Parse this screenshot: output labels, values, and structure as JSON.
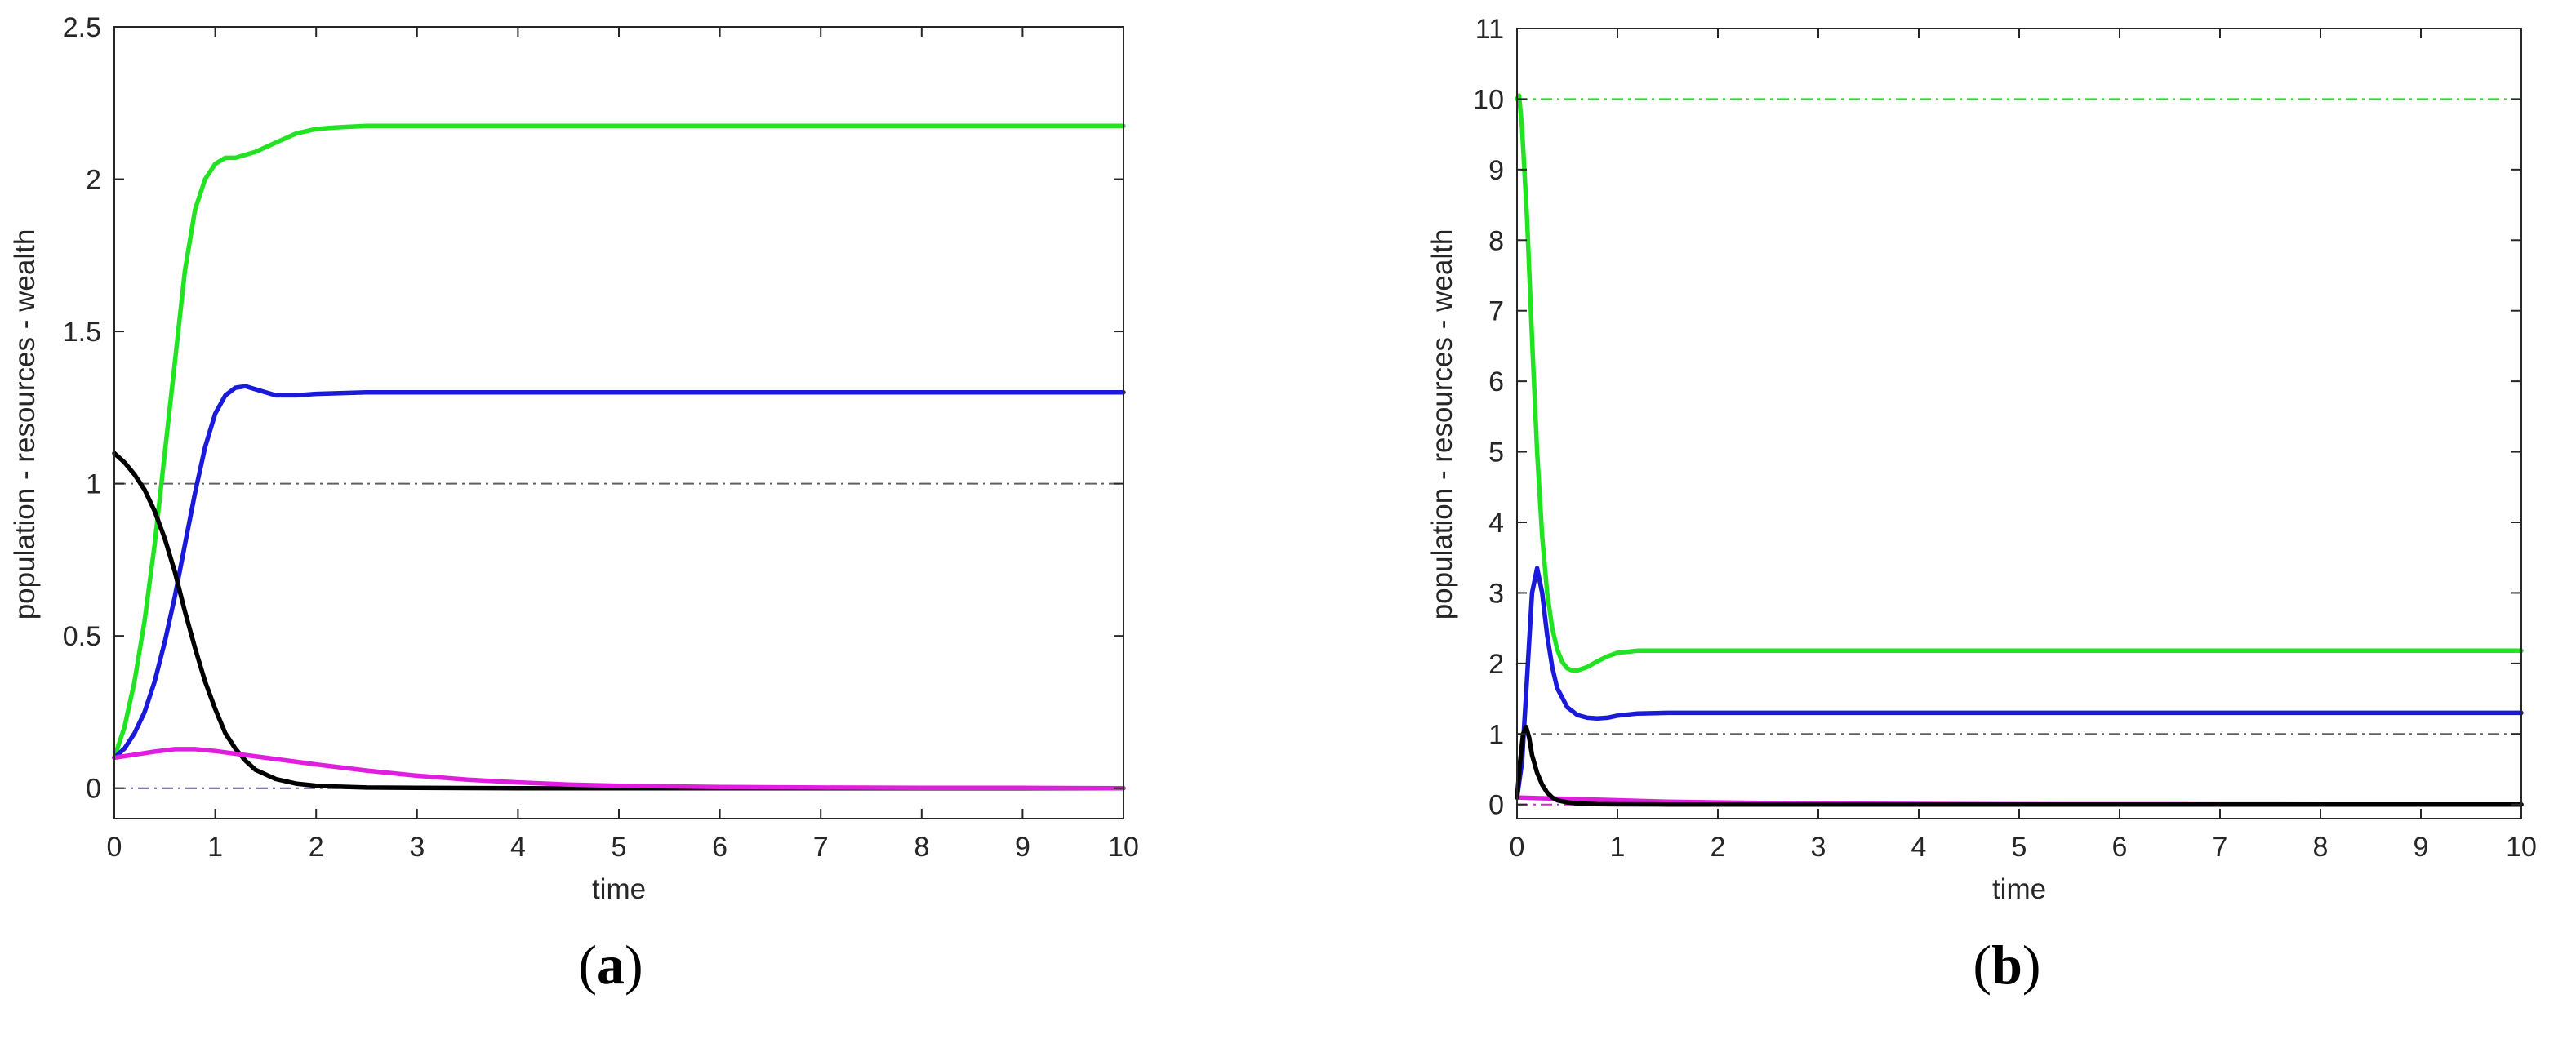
{
  "chart_data": [
    {
      "type": "line",
      "panel": "a",
      "caption_open": "(",
      "caption_letter": "a",
      "caption_close": ")",
      "xlabel": "time",
      "ylabel": "population - resources - wealth",
      "xlim": [
        0,
        10
      ],
      "ylim": [
        -0.1,
        2.5
      ],
      "xticks": [
        "0",
        "1",
        "2",
        "3",
        "4",
        "5",
        "6",
        "7",
        "8",
        "9",
        "10"
      ],
      "yticks": [
        "0",
        "0.5",
        "1",
        "1.5",
        "2",
        "2.5"
      ],
      "ytick_values": [
        0,
        0.5,
        1,
        1.5,
        2,
        2.5
      ],
      "reference_lines": [
        {
          "name": "ref-line-1",
          "y": 1,
          "color": "#606060",
          "style": "dash-dot"
        },
        {
          "name": "ref-line-0",
          "y": 0,
          "color": "#5a5a8a",
          "style": "dash-dot"
        }
      ],
      "series": [
        {
          "name": "green-series",
          "color": "#22e322",
          "x": [
            0,
            0.1,
            0.2,
            0.3,
            0.4,
            0.5,
            0.6,
            0.7,
            0.8,
            0.9,
            1.0,
            1.1,
            1.2,
            1.4,
            1.6,
            1.8,
            2.0,
            2.2,
            2.5,
            3,
            4,
            5,
            6,
            7,
            8,
            9,
            10
          ],
          "y": [
            0.1,
            0.2,
            0.35,
            0.55,
            0.8,
            1.1,
            1.4,
            1.7,
            1.9,
            2.0,
            2.05,
            2.07,
            2.07,
            2.09,
            2.12,
            2.15,
            2.165,
            2.17,
            2.175,
            2.175,
            2.175,
            2.175,
            2.175,
            2.175,
            2.175,
            2.175,
            2.175
          ]
        },
        {
          "name": "blue-series",
          "color": "#1a1adb",
          "x": [
            0,
            0.1,
            0.2,
            0.3,
            0.4,
            0.5,
            0.6,
            0.7,
            0.8,
            0.9,
            1.0,
            1.1,
            1.2,
            1.3,
            1.4,
            1.6,
            1.8,
            2.0,
            2.5,
            3,
            4,
            5,
            6,
            7,
            8,
            9,
            10
          ],
          "y": [
            0.1,
            0.13,
            0.18,
            0.25,
            0.35,
            0.48,
            0.63,
            0.8,
            0.97,
            1.12,
            1.23,
            1.29,
            1.315,
            1.32,
            1.31,
            1.29,
            1.29,
            1.295,
            1.3,
            1.3,
            1.3,
            1.3,
            1.3,
            1.3,
            1.3,
            1.3,
            1.3
          ]
        },
        {
          "name": "black-series",
          "color": "#000000",
          "x": [
            0,
            0.1,
            0.2,
            0.3,
            0.4,
            0.5,
            0.6,
            0.7,
            0.8,
            0.9,
            1.0,
            1.1,
            1.2,
            1.3,
            1.4,
            1.6,
            1.8,
            2.0,
            2.2,
            2.5,
            3,
            4,
            5,
            6,
            7,
            8,
            9,
            10
          ],
          "y": [
            1.1,
            1.07,
            1.03,
            0.98,
            0.91,
            0.82,
            0.71,
            0.58,
            0.46,
            0.35,
            0.26,
            0.18,
            0.13,
            0.09,
            0.06,
            0.03,
            0.015,
            0.008,
            0.005,
            0.002,
            0.001,
            0,
            0,
            0,
            0,
            0,
            0,
            0
          ]
        },
        {
          "name": "magenta-series",
          "color": "#e01ee0",
          "x": [
            0,
            0.2,
            0.4,
            0.6,
            0.8,
            1.0,
            1.2,
            1.5,
            2.0,
            2.5,
            3,
            3.5,
            4,
            4.5,
            5,
            6,
            7,
            8,
            9,
            10
          ],
          "y": [
            0.1,
            0.11,
            0.12,
            0.128,
            0.128,
            0.122,
            0.113,
            0.1,
            0.078,
            0.058,
            0.041,
            0.028,
            0.019,
            0.012,
            0.008,
            0.004,
            0.002,
            0.001,
            0.001,
            0
          ]
        }
      ]
    },
    {
      "type": "line",
      "panel": "b",
      "caption_open": "(",
      "caption_letter": "b",
      "caption_close": ")",
      "xlabel": "time",
      "ylabel": "population - resources - wealth",
      "xlim": [
        0,
        10
      ],
      "ylim": [
        -0.2,
        11
      ],
      "xticks": [
        "0",
        "1",
        "2",
        "3",
        "4",
        "5",
        "6",
        "7",
        "8",
        "9",
        "10"
      ],
      "yticks": [
        "0",
        "1",
        "2",
        "3",
        "4",
        "5",
        "6",
        "7",
        "8",
        "9",
        "10",
        "11"
      ],
      "ytick_values": [
        0,
        1,
        2,
        3,
        4,
        5,
        6,
        7,
        8,
        9,
        10,
        11
      ],
      "reference_lines": [
        {
          "name": "ref-line-10",
          "y": 10,
          "color": "#22e322",
          "style": "dash-dot"
        },
        {
          "name": "ref-line-1",
          "y": 1,
          "color": "#606060",
          "style": "dash-dot"
        },
        {
          "name": "ref-line-0",
          "y": 0,
          "color": "#e01ee0",
          "style": "dash-dot"
        }
      ],
      "series": [
        {
          "name": "green-series",
          "color": "#22e322",
          "x": [
            0,
            0.02,
            0.05,
            0.1,
            0.15,
            0.2,
            0.25,
            0.3,
            0.35,
            0.4,
            0.45,
            0.5,
            0.55,
            0.6,
            0.7,
            0.8,
            0.9,
            1.0,
            1.2,
            1.5,
            2,
            3,
            4,
            5,
            6,
            7,
            8,
            9,
            10
          ],
          "y": [
            10,
            10.05,
            9.6,
            8.3,
            6.6,
            5.0,
            3.8,
            3.0,
            2.5,
            2.2,
            2.02,
            1.93,
            1.9,
            1.9,
            1.95,
            2.03,
            2.1,
            2.15,
            2.18,
            2.18,
            2.18,
            2.18,
            2.18,
            2.18,
            2.18,
            2.18,
            2.18,
            2.18,
            2.18
          ]
        },
        {
          "name": "blue-series",
          "color": "#1a1adb",
          "x": [
            0,
            0.05,
            0.1,
            0.15,
            0.2,
            0.25,
            0.3,
            0.35,
            0.4,
            0.5,
            0.6,
            0.7,
            0.8,
            0.9,
            1.0,
            1.2,
            1.5,
            2,
            3,
            4,
            5,
            6,
            7,
            8,
            9,
            10
          ],
          "y": [
            0.1,
            0.6,
            1.8,
            3.0,
            3.35,
            3.0,
            2.4,
            1.95,
            1.65,
            1.38,
            1.27,
            1.23,
            1.22,
            1.23,
            1.26,
            1.29,
            1.3,
            1.3,
            1.3,
            1.3,
            1.3,
            1.3,
            1.3,
            1.3,
            1.3,
            1.3
          ]
        },
        {
          "name": "magenta-series",
          "color": "#e01ee0",
          "x": [
            0,
            0.2,
            0.5,
            1.0,
            1.5,
            2,
            3,
            4,
            5,
            6,
            7,
            8,
            9,
            10
          ],
          "y": [
            0.1,
            0.09,
            0.08,
            0.06,
            0.04,
            0.03,
            0.015,
            0.008,
            0.004,
            0.002,
            0.001,
            0,
            0,
            0
          ]
        },
        {
          "name": "black-series",
          "color": "#000000",
          "x": [
            0,
            0.03,
            0.06,
            0.09,
            0.12,
            0.15,
            0.2,
            0.25,
            0.3,
            0.35,
            0.4,
            0.5,
            0.6,
            0.8,
            1.0,
            1.5,
            2,
            3,
            4,
            5,
            6,
            7,
            8,
            9,
            10
          ],
          "y": [
            0.1,
            0.6,
            1.0,
            1.1,
            0.95,
            0.7,
            0.45,
            0.28,
            0.17,
            0.1,
            0.06,
            0.03,
            0.015,
            0.005,
            0.002,
            0,
            0,
            0,
            0,
            0,
            0,
            0,
            0,
            0,
            0
          ]
        }
      ]
    }
  ]
}
